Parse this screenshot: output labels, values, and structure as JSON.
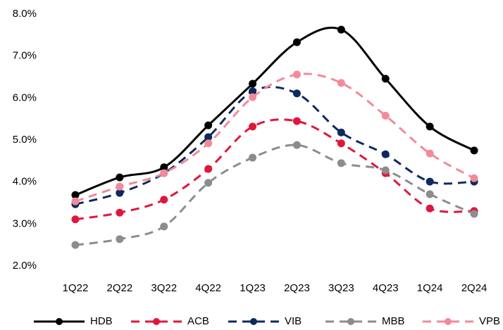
{
  "chart_data": {
    "type": "line",
    "categories": [
      "1Q22",
      "2Q22",
      "3Q22",
      "4Q22",
      "1Q23",
      "2Q23",
      "3Q23",
      "4Q23",
      "1Q24",
      "2Q24"
    ],
    "series": [
      {
        "name": "HDB",
        "color": "#000000",
        "dashed": false,
        "values": [
          3.69,
          4.11,
          4.35,
          5.35,
          6.34,
          7.33,
          7.63,
          6.46,
          5.32,
          4.75
        ]
      },
      {
        "name": "ACB",
        "color": "#e0173c",
        "dashed": true,
        "values": [
          3.11,
          3.27,
          3.58,
          4.31,
          5.32,
          5.45,
          4.92,
          4.21,
          3.37,
          3.31
        ]
      },
      {
        "name": "VIB",
        "color": "#0d2a5e",
        "dashed": true,
        "values": [
          3.47,
          3.74,
          4.21,
          5.07,
          6.16,
          6.11,
          5.18,
          4.66,
          4.01,
          4.01
        ]
      },
      {
        "name": "MBB",
        "color": "#8c8c8c",
        "dashed": true,
        "values": [
          2.5,
          2.64,
          2.94,
          3.98,
          4.58,
          4.88,
          4.45,
          4.28,
          3.71,
          3.24
        ]
      },
      {
        "name": "VPB",
        "color": "#f28a9a",
        "dashed": true,
        "values": [
          3.54,
          3.89,
          4.21,
          4.92,
          6.02,
          6.56,
          6.36,
          5.58,
          4.68,
          4.09
        ]
      }
    ],
    "ylim": [
      2,
      8
    ],
    "yticks": [
      {
        "value": 2,
        "label": "2.0%"
      },
      {
        "value": 3,
        "label": "3.0%"
      },
      {
        "value": 4,
        "label": "4.0%"
      },
      {
        "value": 5,
        "label": "5.0%"
      },
      {
        "value": 6,
        "label": "6.0%"
      },
      {
        "value": 7,
        "label": "7.0%"
      },
      {
        "value": 8,
        "label": "8.0%"
      }
    ],
    "grid": false,
    "legend": "bottom"
  }
}
